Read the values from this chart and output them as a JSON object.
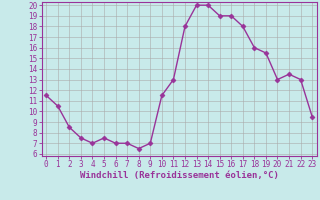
{
  "x": [
    0,
    1,
    2,
    3,
    4,
    5,
    6,
    7,
    8,
    9,
    10,
    11,
    12,
    13,
    14,
    15,
    16,
    17,
    18,
    19,
    20,
    21,
    22,
    23
  ],
  "y": [
    11.5,
    10.5,
    8.5,
    7.5,
    7.0,
    7.5,
    7.0,
    7.0,
    6.5,
    7.0,
    11.5,
    13.0,
    18.0,
    20.0,
    20.0,
    19.0,
    19.0,
    18.0,
    16.0,
    15.5,
    13.0,
    13.5,
    13.0,
    9.5
  ],
  "color": "#993399",
  "bg_color": "#c8eaea",
  "grid_color": "#aaaaaa",
  "ylim_min": 6,
  "ylim_max": 20,
  "xlim_min": 0,
  "xlim_max": 23,
  "yticks": [
    6,
    7,
    8,
    9,
    10,
    11,
    12,
    13,
    14,
    15,
    16,
    17,
    18,
    19,
    20
  ],
  "xticks": [
    0,
    1,
    2,
    3,
    4,
    5,
    6,
    7,
    8,
    9,
    10,
    11,
    12,
    13,
    14,
    15,
    16,
    17,
    18,
    19,
    20,
    21,
    22,
    23
  ],
  "xlabel": "Windchill (Refroidissement éolien,°C)",
  "xlabel_fontsize": 6.5,
  "tick_fontsize": 5.5,
  "line_width": 1.0,
  "marker": "D",
  "marker_size": 2.5
}
